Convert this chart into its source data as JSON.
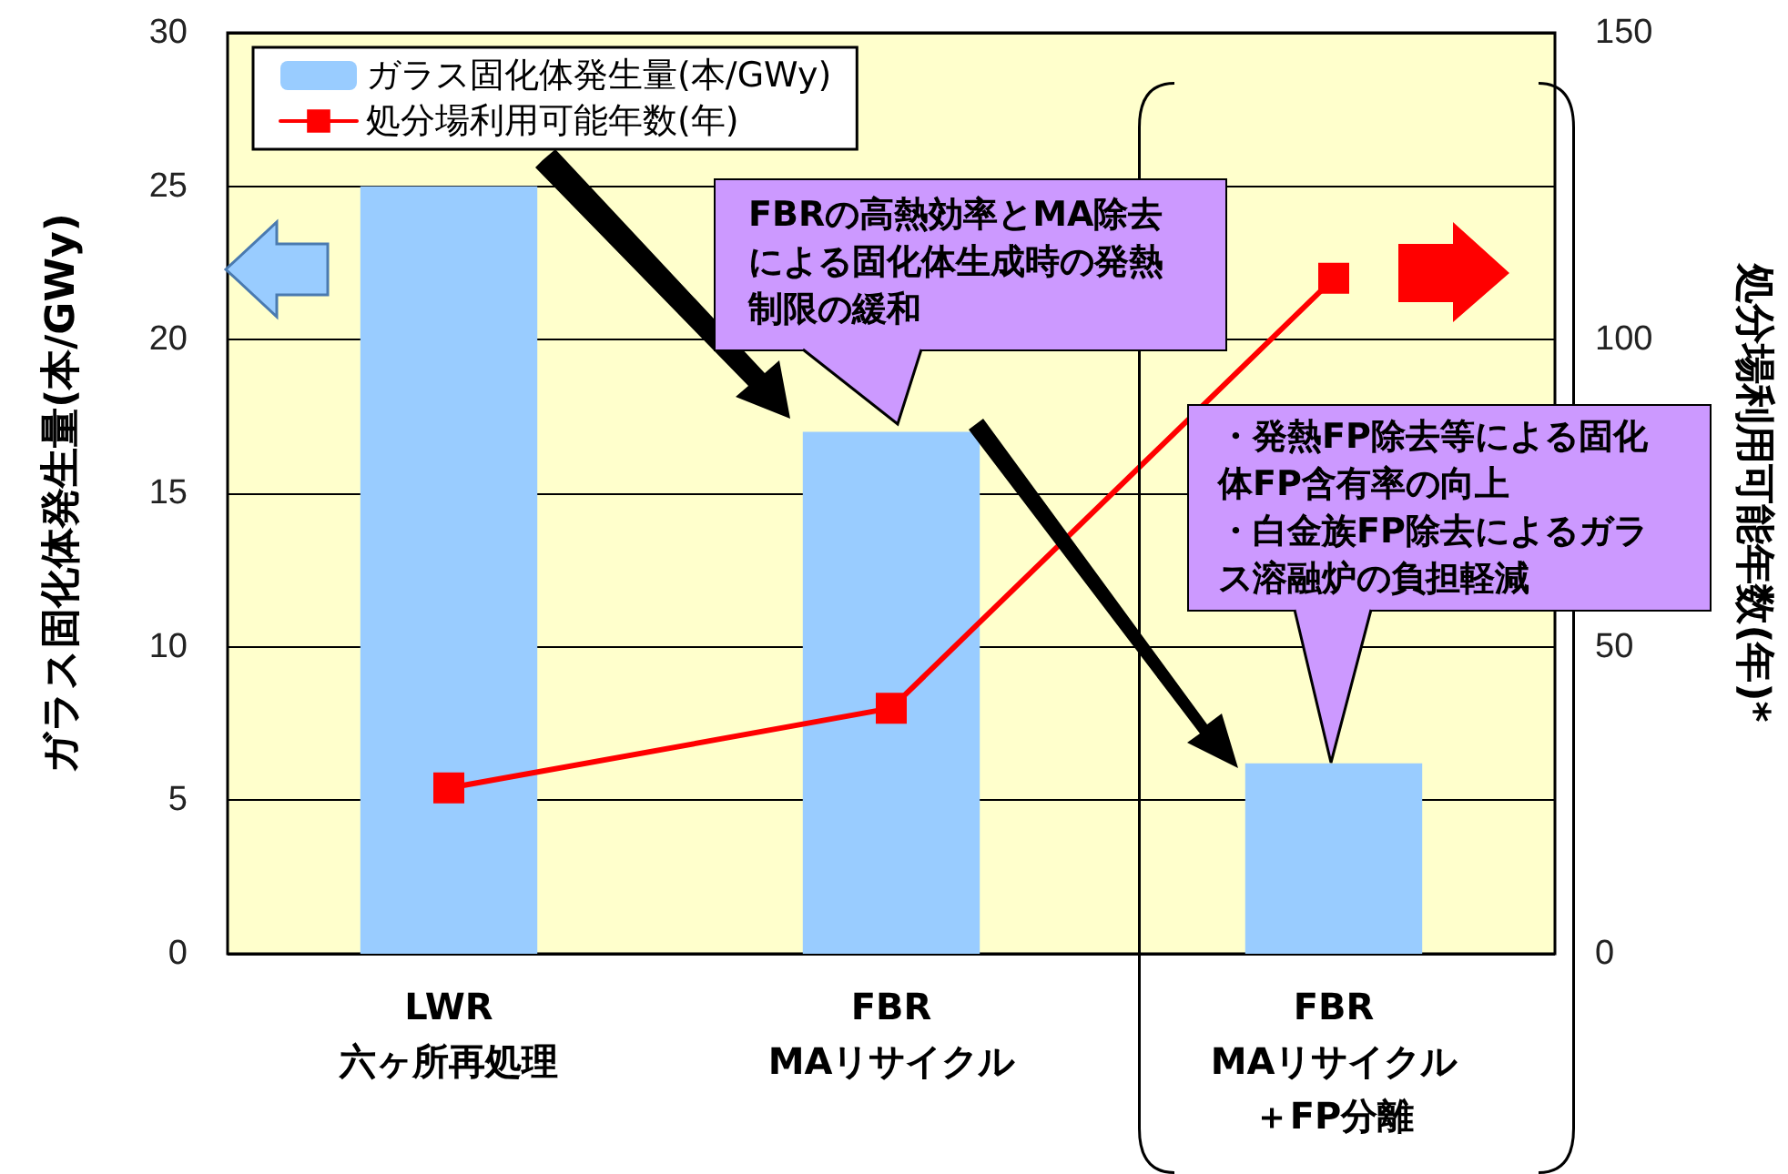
{
  "chart_data": {
    "type": "bar",
    "ylabel": "ガラス固化体発生量(本/GWy)",
    "y2label": "処分場利用可能年数(年)*",
    "categories": [
      "LWR\n六ヶ所再処理",
      "FBR\nMAリサイクル",
      "FBR\nMAリサイクル＋FP分離"
    ],
    "series": [
      {
        "name": "ガラス固化体発生量(本/GWy)",
        "color": "#99ccff",
        "values": [
          25,
          17,
          6.2
        ]
      },
      {
        "name": "処分場利用可能年数(年)",
        "type": "line",
        "axis": "y2",
        "color": "#ff0000",
        "values": [
          27,
          40,
          110
        ]
      }
    ],
    "ylim": [
      0,
      30
    ],
    "yticks": [
      0,
      5,
      10,
      15,
      20,
      25,
      30
    ],
    "y2lim": [
      0,
      150
    ],
    "y2ticks": [
      0,
      50,
      100,
      150
    ],
    "grid": "y",
    "legend": "top left",
    "marker": "square",
    "line_style": "solid",
    "annotations": [
      "FBRの高熱効率とMA除去による固化体生成時の発熱制限の緩和",
      "・発熱FP除去等による固化体FP含有率の向上",
      "・白金族FP除去によるガラス溶融炉の負担軽減"
    ]
  }
}
